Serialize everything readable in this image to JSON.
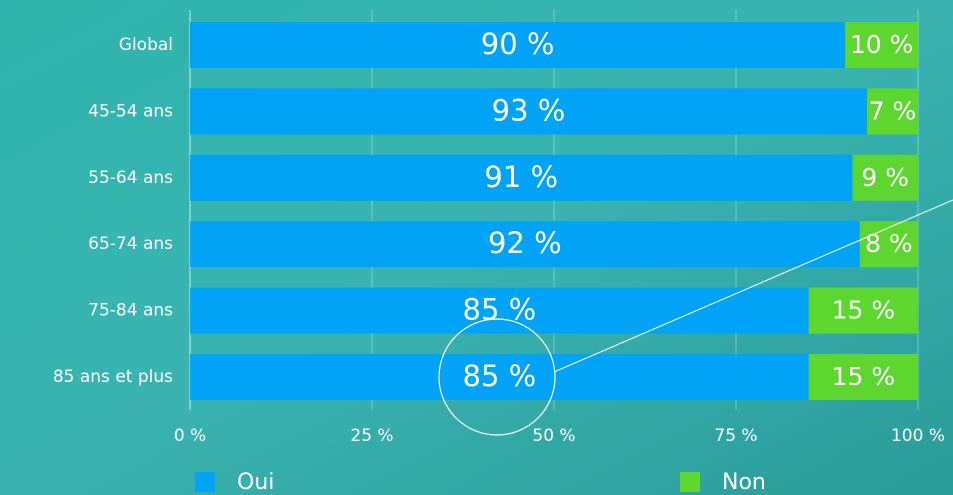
{
  "chart_data": {
    "type": "bar",
    "orientation": "horizontal",
    "stacked": true,
    "categories": [
      "Global",
      "45-54 ans",
      "55-64 ans",
      "65-74 ans",
      "75-84 ans",
      "85 ans et plus"
    ],
    "series": [
      {
        "name": "Oui",
        "color": "#00a3f5",
        "values": [
          90,
          93,
          91,
          92,
          85,
          85
        ],
        "value_labels": [
          "90 %",
          "93 %",
          "91 %",
          "92 %",
          "85 %",
          "85 %"
        ]
      },
      {
        "name": "Non",
        "color": "#5ed630",
        "values": [
          10,
          7,
          9,
          8,
          15,
          15
        ],
        "value_labels": [
          "10 %",
          "7 %",
          "9 %",
          "8 %",
          "15 %",
          "15 %"
        ]
      }
    ],
    "xlim": [
      0,
      100
    ],
    "xticks": [
      {
        "value": 0,
        "label": "0 %"
      },
      {
        "value": 25,
        "label": "25 %"
      },
      {
        "value": 50,
        "label": "50 %"
      },
      {
        "value": 75,
        "label": "75 %"
      },
      {
        "value": 100,
        "label": "100 %"
      }
    ],
    "grid": true,
    "legend": "bottom"
  }
}
